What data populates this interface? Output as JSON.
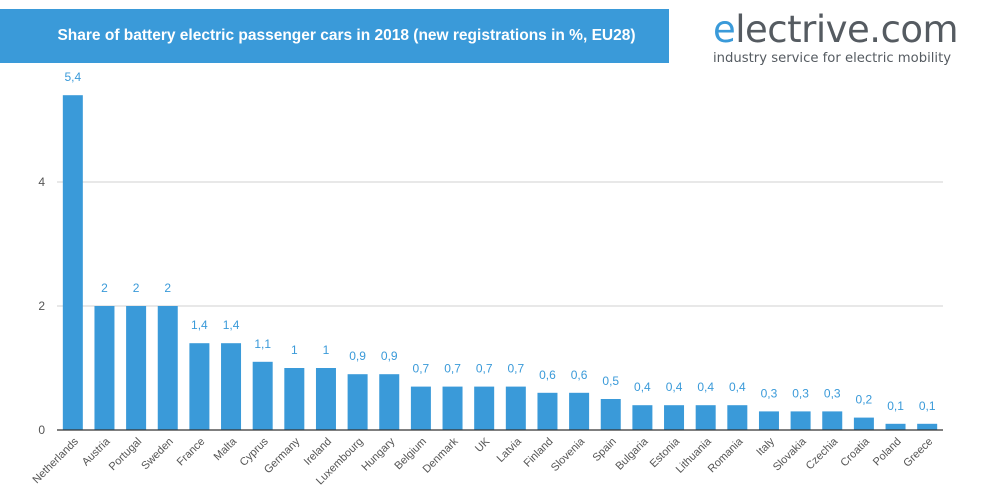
{
  "header": {
    "title": "Share of battery electric passenger cars in 2018 (new registrations in %, EU28)"
  },
  "logo": {
    "first_letter": "e",
    "rest": "lectrive.com",
    "tagline": "industry service for electric mobility"
  },
  "colors": {
    "accent": "#3a9ad9",
    "bar": "#3a9ad9",
    "grid": "#d0d0d0",
    "text": "#555555"
  },
  "chart_data": {
    "type": "bar",
    "title": "Share of battery electric passenger cars in 2018 (new registrations in %, EU28)",
    "xlabel": "",
    "ylabel": "",
    "ylim": [
      0,
      5.6
    ],
    "yticks": [
      0,
      2,
      4
    ],
    "grid": true,
    "categories": [
      "Netherlands",
      "Austria",
      "Portugal",
      "Sweden",
      "France",
      "Malta",
      "Cyprus",
      "Germany",
      "Ireland",
      "Luxembourg",
      "Hungary",
      "Belgium",
      "Denmark",
      "UK",
      "Latvia",
      "Finland",
      "Slovenia",
      "Spain",
      "Bulgaria",
      "Estonia",
      "Lithuania",
      "Romania",
      "Italy",
      "Slovakia",
      "Czechia",
      "Croatia",
      "Poland",
      "Greece"
    ],
    "values": [
      5.4,
      2,
      2,
      2,
      1.4,
      1.4,
      1.1,
      1,
      1,
      0.9,
      0.9,
      0.7,
      0.7,
      0.7,
      0.7,
      0.6,
      0.6,
      0.5,
      0.4,
      0.4,
      0.4,
      0.4,
      0.3,
      0.3,
      0.3,
      0.2,
      0.1,
      0.1
    ],
    "value_labels": [
      "5,4",
      "2",
      "2",
      "2",
      "1,4",
      "1,4",
      "1,1",
      "1",
      "1",
      "0,9",
      "0,9",
      "0,7",
      "0,7",
      "0,7",
      "0,7",
      "0,6",
      "0,6",
      "0,5",
      "0,4",
      "0,4",
      "0,4",
      "0,4",
      "0,3",
      "0,3",
      "0,3",
      "0,2",
      "0,1",
      "0,1"
    ]
  }
}
